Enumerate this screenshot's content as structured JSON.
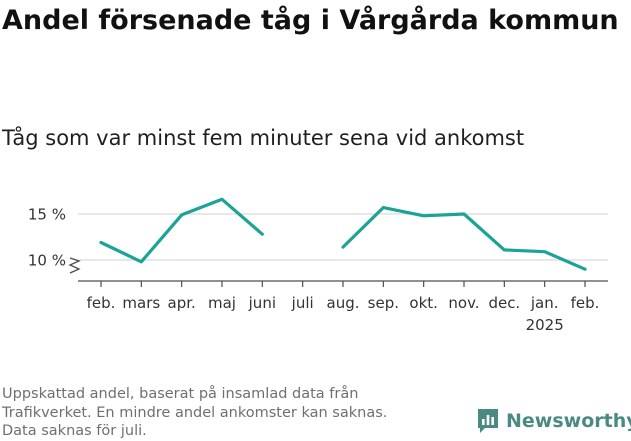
{
  "title": "Andel försenade tåg i Vårgårda kommun",
  "subtitle": "Tåg som var minst fem minuter sena vid ankomst",
  "footnote": [
    "Uppskattad andel, baserat på insamlad data från",
    "Trafikverket. En mindre andel ankomster kan saknas.",
    "Data saknas för juli."
  ],
  "brand": {
    "name": "Newsworthy",
    "icon": "bar-chart-logo-icon",
    "color": "#4a8a83"
  },
  "chart_data": {
    "type": "line",
    "title": "Andel försenade tåg i Vårgårda kommun",
    "subtitle": "Tåg som var minst fem minuter sena vid ankomst",
    "xlabel": "",
    "ylabel": "",
    "categories": [
      "feb.",
      "mars",
      "apr.",
      "maj",
      "juni",
      "juli",
      "aug.",
      "sep.",
      "okt.",
      "nov.",
      "dec.",
      "jan.",
      "feb."
    ],
    "category_sublabels": [
      "",
      "",
      "",
      "",
      "",
      "",
      "",
      "",
      "",
      "",
      "",
      "2025",
      ""
    ],
    "series": [
      {
        "values": [
          11.9,
          9.8,
          14.9,
          16.6,
          12.8,
          null,
          11.4,
          15.7,
          14.8,
          15.0,
          11.1,
          10.9,
          9.0
        ],
        "color": "#1aa396"
      }
    ],
    "y_ticks": [
      10,
      15
    ],
    "y_tick_labels": [
      "10 %",
      "15 %"
    ],
    "ylim": [
      8,
      17
    ],
    "y_axis_break": true,
    "grid": true
  }
}
